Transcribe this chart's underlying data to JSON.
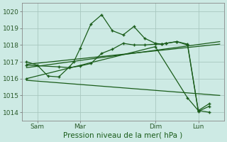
{
  "title": "Pression niveau de la mer( hPa )",
  "background_color": "#cdeae4",
  "grid_color": "#a8c8c0",
  "line_color": "#1a5c1a",
  "yticks": [
    1014,
    1015,
    1016,
    1017,
    1018,
    1019,
    1020
  ],
  "ylim": [
    1013.5,
    1020.5
  ],
  "xlim": [
    -0.2,
    9.2
  ],
  "xtick_labels": [
    "Sam",
    "Mar",
    "Dim",
    "Lun"
  ],
  "xtick_positions": [
    0.5,
    2.5,
    6.0,
    8.0
  ],
  "series1_x": [
    0.0,
    0.5,
    1.0,
    1.5,
    2.0,
    2.2,
    2.5,
    3.0,
    3.5,
    4.0,
    4.5,
    5.0,
    5.5,
    6.0,
    6.3,
    6.5,
    7.0,
    7.5,
    8.0,
    8.5
  ],
  "series1_y": [
    1017.0,
    1016.8,
    1016.15,
    1016.1,
    1016.7,
    1017.0,
    1017.8,
    1019.25,
    1019.8,
    1018.85,
    1018.6,
    1019.1,
    1018.4,
    1018.1,
    1018.05,
    1018.1,
    1018.2,
    1018.05,
    1014.05,
    1014.35
  ],
  "series2_x": [
    0.0,
    1.5,
    2.0,
    2.5,
    3.0,
    3.5,
    4.0,
    4.5,
    5.0,
    5.5,
    6.0,
    6.3,
    6.5,
    7.0,
    7.5,
    8.0,
    8.5
  ],
  "series2_y": [
    1016.8,
    1016.7,
    1016.65,
    1016.75,
    1016.9,
    1017.5,
    1017.75,
    1018.1,
    1018.0,
    1018.0,
    1018.05,
    1018.05,
    1018.1,
    1018.2,
    1018.0,
    1014.1,
    1014.0
  ],
  "series3_x": [
    0.0,
    6.0,
    7.5,
    8.0,
    8.5
  ],
  "series3_y": [
    1016.0,
    1017.9,
    1014.85,
    1014.1,
    1014.5
  ],
  "series4_x": [
    0.0,
    9.0
  ],
  "series4_y": [
    1016.65,
    1018.2
  ],
  "series5_x": [
    0.0,
    9.0
  ],
  "series5_y": [
    1016.85,
    1018.05
  ],
  "series6_x": [
    0.0,
    9.0
  ],
  "series6_y": [
    1015.9,
    1015.0
  ]
}
